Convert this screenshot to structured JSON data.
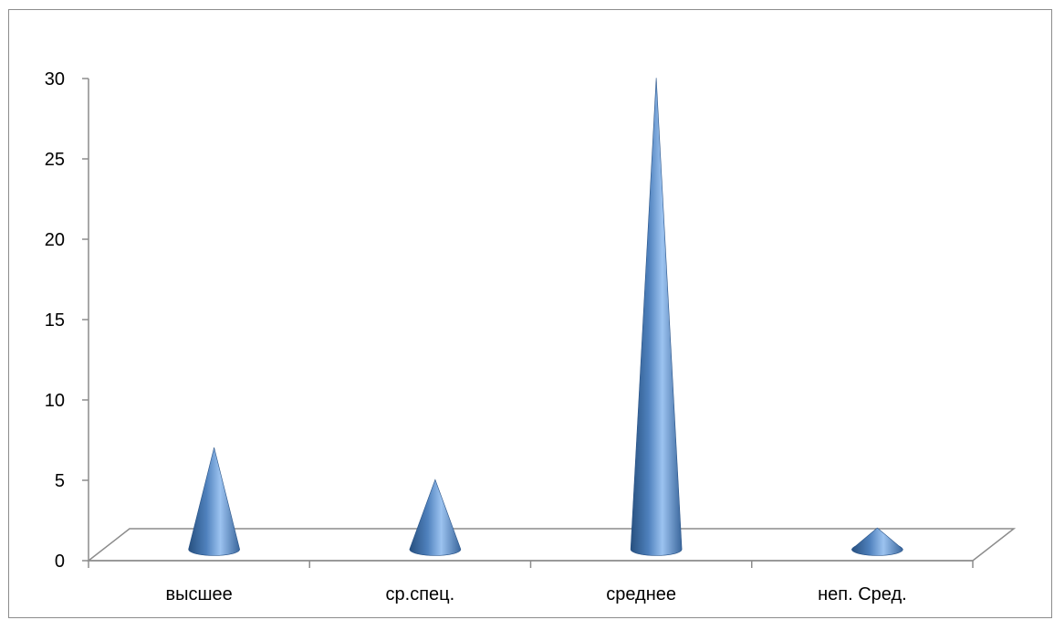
{
  "chart_data": {
    "type": "bar",
    "style": "3d-cone",
    "categories": [
      "высшее",
      "ср.спец.",
      "среднее",
      "неп. Сред."
    ],
    "values": [
      6.5,
      4.5,
      29.5,
      1.5
    ],
    "ylim": [
      0,
      30
    ],
    "yticks": [
      "0",
      "5",
      "10",
      "15",
      "20",
      "25",
      "30"
    ],
    "grid": false,
    "legend": "none",
    "title": "",
    "xlabel": "",
    "ylabel": ""
  },
  "colors": {
    "cone_light": "#9cc3f0",
    "cone_mid": "#4f81bd",
    "cone_dark": "#27507f",
    "axis": "#8c8c8c"
  }
}
